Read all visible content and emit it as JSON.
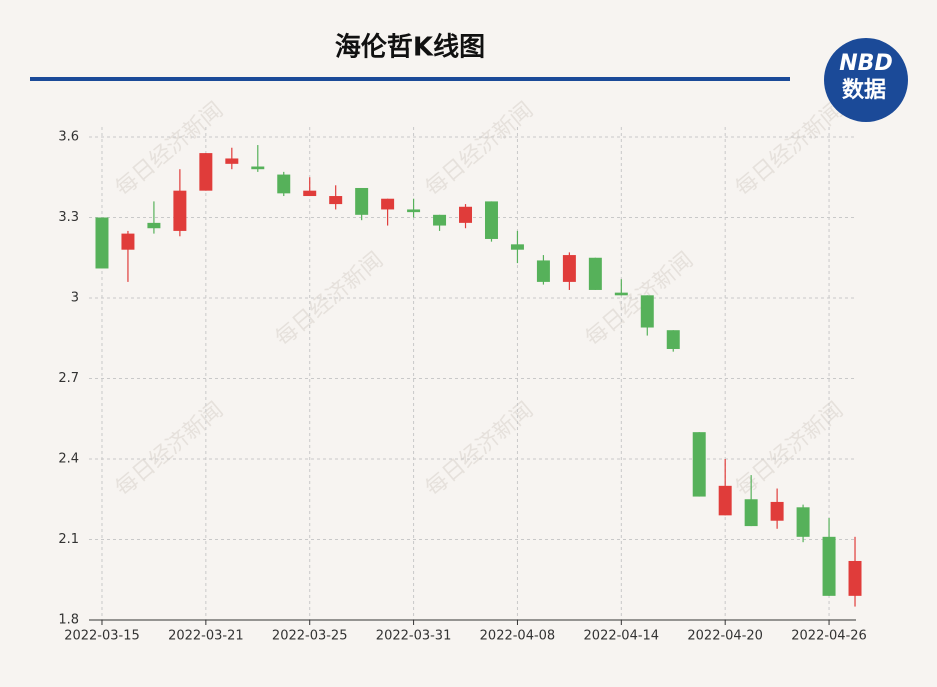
{
  "watermark": "每日经济新闻",
  "logo": {
    "top": "NBD",
    "bottom": "数据"
  },
  "chart_data": {
    "type": "candlestick",
    "title": "海伦哲K线图",
    "categories": [
      "2022-03-15",
      null,
      null,
      null,
      "2022-03-21",
      null,
      null,
      null,
      "2022-03-25",
      null,
      null,
      null,
      "2022-03-31",
      null,
      null,
      null,
      "2022-04-08",
      null,
      null,
      null,
      "2022-04-14",
      null,
      null,
      null,
      "2022-04-20",
      null,
      null,
      null,
      "2022-04-26",
      null
    ],
    "open": [
      3.3,
      3.18,
      3.28,
      3.25,
      3.4,
      3.5,
      3.49,
      3.46,
      3.38,
      3.35,
      3.41,
      3.33,
      3.33,
      3.31,
      3.28,
      3.36,
      3.2,
      3.14,
      3.06,
      3.15,
      3.02,
      3.01,
      2.88,
      2.5,
      2.19,
      2.25,
      2.17,
      2.22,
      2.11,
      1.89
    ],
    "high": [
      3.3,
      3.25,
      3.36,
      3.48,
      3.54,
      3.56,
      3.57,
      3.47,
      3.45,
      3.42,
      3.41,
      3.37,
      3.37,
      3.31,
      3.35,
      3.36,
      3.25,
      3.16,
      3.17,
      3.15,
      3.07,
      3.01,
      2.88,
      2.5,
      2.4,
      2.34,
      2.29,
      2.23,
      2.18,
      2.11
    ],
    "low": [
      3.11,
      3.06,
      3.24,
      3.23,
      3.4,
      3.48,
      3.47,
      3.38,
      3.38,
      3.33,
      3.29,
      3.27,
      3.3,
      3.25,
      3.26,
      3.21,
      3.13,
      3.05,
      3.03,
      3.03,
      3.01,
      2.86,
      2.8,
      2.26,
      2.19,
      2.15,
      2.14,
      2.09,
      1.89,
      1.85
    ],
    "close": [
      3.11,
      3.24,
      3.26,
      3.4,
      3.54,
      3.52,
      3.48,
      3.39,
      3.4,
      3.38,
      3.31,
      3.37,
      3.32,
      3.27,
      3.34,
      3.22,
      3.18,
      3.06,
      3.16,
      3.03,
      3.01,
      2.89,
      2.81,
      2.26,
      2.3,
      2.15,
      2.24,
      2.11,
      1.89,
      2.02
    ],
    "up_color": "#e03c3a",
    "down_color": "#56b15a",
    "ylim": [
      1.8,
      3.6
    ],
    "yticks": [
      1.8,
      2.1,
      2.4,
      2.7,
      3,
      3.3,
      3.6
    ],
    "grid": true
  }
}
